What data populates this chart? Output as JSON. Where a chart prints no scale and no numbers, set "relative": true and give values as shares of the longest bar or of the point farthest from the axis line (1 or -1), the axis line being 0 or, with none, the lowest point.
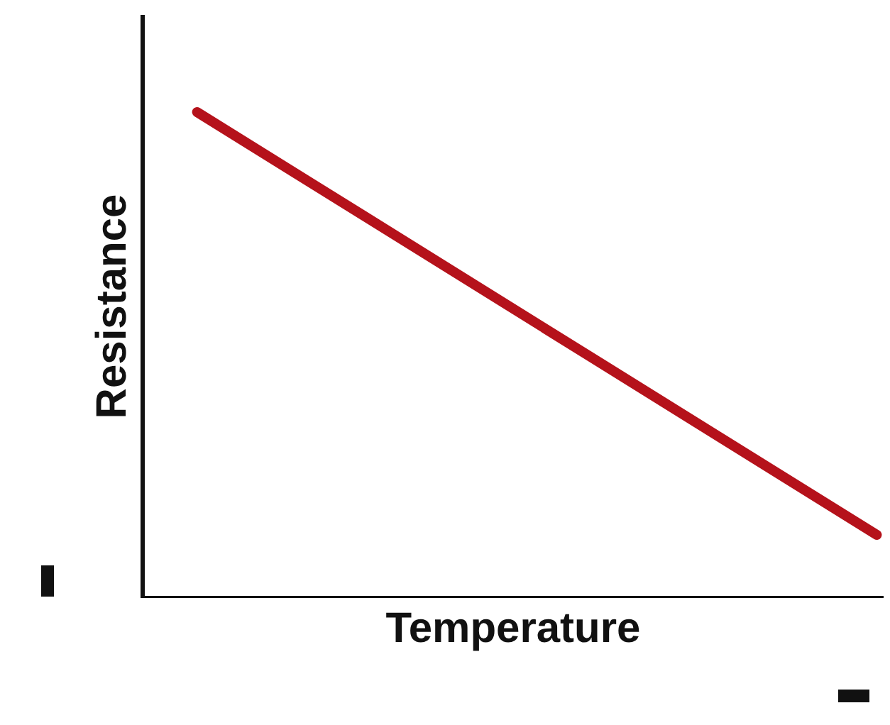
{
  "chart_data": {
    "type": "line",
    "xlabel": "Temperature",
    "ylabel": "Resistance",
    "relative": true,
    "ref_lines": [
      {
        "axis": "y",
        "value": 0,
        "color": "#111111"
      }
    ],
    "categories": [
      null,
      null
    ],
    "series": [
      {
        "color": "#b5121b",
        "values": [
          1,
          0.13
        ]
      }
    ]
  }
}
